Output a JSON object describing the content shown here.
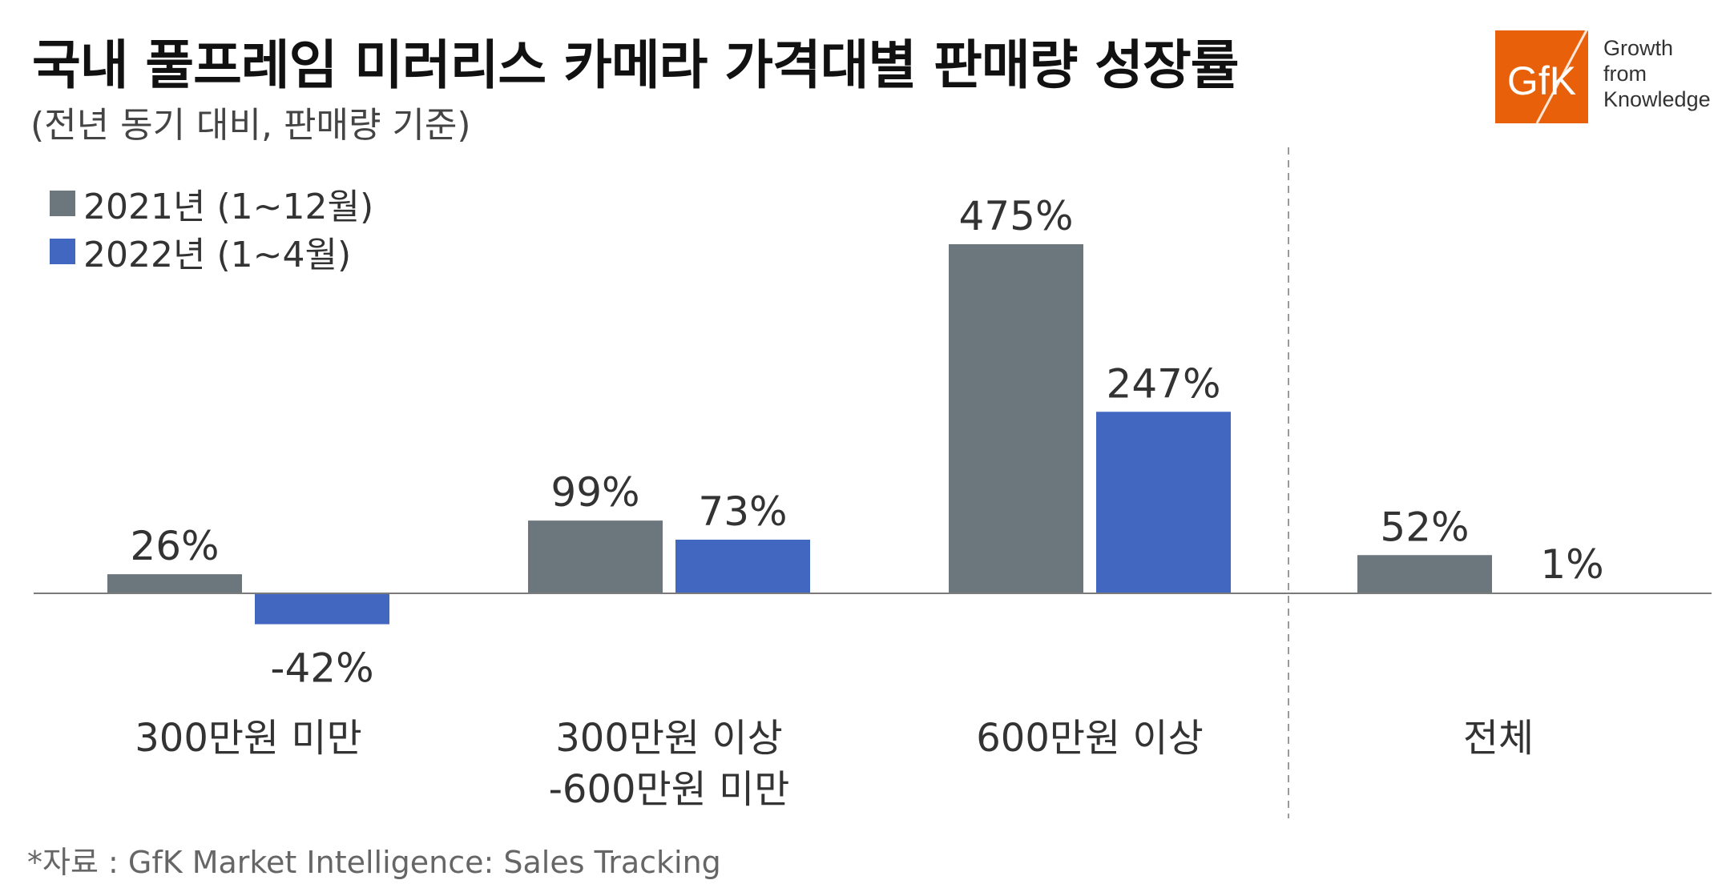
{
  "title": "국내 풀프레임 미러리스 카메라 가격대별 판매량 성장률",
  "subtitle": "(전년 동기 대비, 판매량 기준)",
  "logo": {
    "text": "GfK",
    "tagline": [
      "Growth",
      "from",
      "Knowledge"
    ],
    "color": "#e8610a"
  },
  "source": "*자료 : GfK Market Intelligence: Sales Tracking",
  "chart_data": {
    "type": "bar",
    "categories": [
      "300만원 미만",
      "300만원 이상\n-600만원 미만",
      "600만원 이상",
      "전체"
    ],
    "series": [
      {
        "name": "2021년 (1~12월)",
        "color": "#6b767d",
        "values": [
          26,
          99,
          475,
          52
        ],
        "labels": [
          "26%",
          "99%",
          "475%",
          "52%"
        ]
      },
      {
        "name": "2022년 (1~4월)",
        "color": "#4267c0",
        "values": [
          -42,
          73,
          247,
          1
        ],
        "labels": [
          "-42%",
          "73%",
          "247%",
          "1%"
        ]
      }
    ],
    "ylim": [
      -60,
      600
    ],
    "legend_position": "top-left",
    "grid": false,
    "separator_before_category": 3
  }
}
